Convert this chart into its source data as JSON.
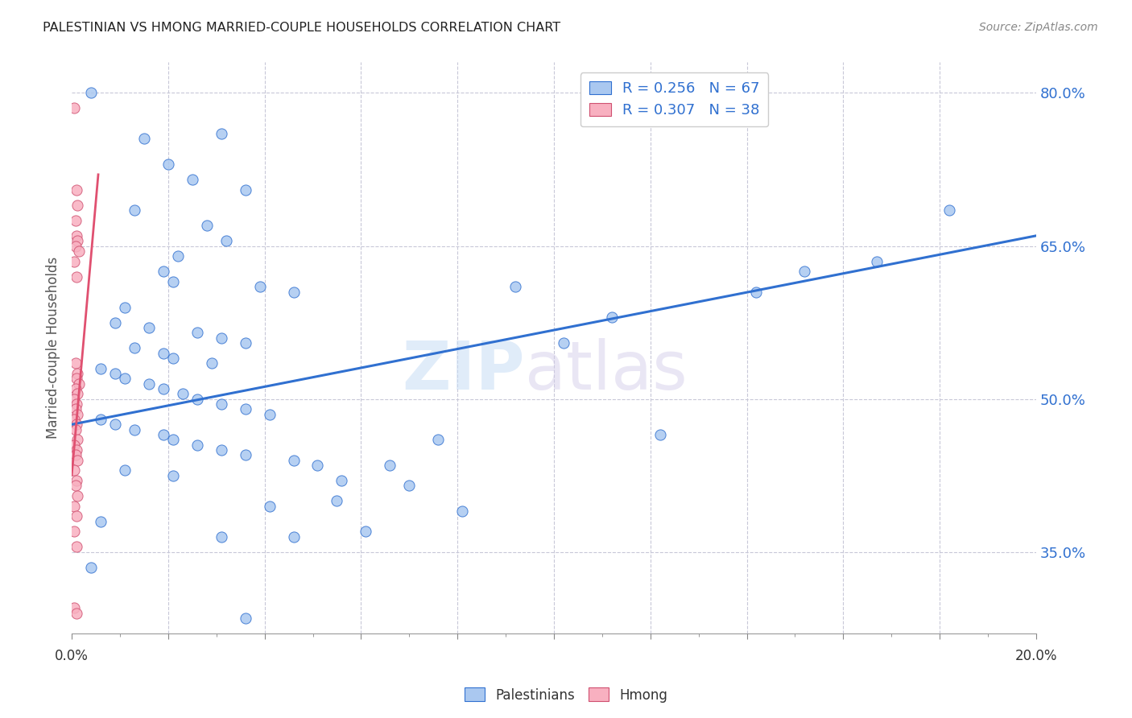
{
  "title": "PALESTINIAN VS HMONG MARRIED-COUPLE HOUSEHOLDS CORRELATION CHART",
  "source": "Source: ZipAtlas.com",
  "ylabel": "Married-couple Households",
  "right_yticks": [
    80.0,
    65.0,
    50.0,
    35.0
  ],
  "legend_blue_label": "R = 0.256   N = 67",
  "legend_pink_label": "R = 0.307   N = 38",
  "blue_color": "#aac8f0",
  "pink_color": "#f8b0c0",
  "trend_blue_color": "#3070d0",
  "trend_pink_color": "#e05070",
  "watermark_zip": "ZIP",
  "watermark_atlas": "atlas",
  "blue_scatter": [
    [
      0.4,
      80.0
    ],
    [
      1.5,
      75.5
    ],
    [
      3.1,
      76.0
    ],
    [
      2.0,
      73.0
    ],
    [
      2.5,
      71.5
    ],
    [
      3.6,
      70.5
    ],
    [
      1.3,
      68.5
    ],
    [
      2.8,
      67.0
    ],
    [
      3.2,
      65.5
    ],
    [
      2.2,
      64.0
    ],
    [
      1.9,
      62.5
    ],
    [
      2.1,
      61.5
    ],
    [
      3.9,
      61.0
    ],
    [
      4.6,
      60.5
    ],
    [
      1.1,
      59.0
    ],
    [
      0.9,
      57.5
    ],
    [
      1.6,
      57.0
    ],
    [
      2.6,
      56.5
    ],
    [
      3.1,
      56.0
    ],
    [
      3.6,
      55.5
    ],
    [
      1.3,
      55.0
    ],
    [
      1.9,
      54.5
    ],
    [
      2.1,
      54.0
    ],
    [
      2.9,
      53.5
    ],
    [
      0.6,
      53.0
    ],
    [
      0.9,
      52.5
    ],
    [
      1.1,
      52.0
    ],
    [
      1.6,
      51.5
    ],
    [
      1.9,
      51.0
    ],
    [
      2.3,
      50.5
    ],
    [
      2.6,
      50.0
    ],
    [
      3.1,
      49.5
    ],
    [
      3.6,
      49.0
    ],
    [
      4.1,
      48.5
    ],
    [
      0.6,
      48.0
    ],
    [
      0.9,
      47.5
    ],
    [
      1.3,
      47.0
    ],
    [
      1.9,
      46.5
    ],
    [
      2.1,
      46.0
    ],
    [
      2.6,
      45.5
    ],
    [
      3.1,
      45.0
    ],
    [
      3.6,
      44.5
    ],
    [
      4.6,
      44.0
    ],
    [
      5.1,
      43.5
    ],
    [
      1.1,
      43.0
    ],
    [
      2.1,
      42.5
    ],
    [
      5.6,
      42.0
    ],
    [
      4.1,
      39.5
    ],
    [
      0.6,
      38.0
    ],
    [
      3.1,
      36.5
    ],
    [
      9.2,
      61.0
    ],
    [
      14.2,
      60.5
    ],
    [
      18.2,
      68.5
    ],
    [
      11.2,
      58.0
    ],
    [
      15.2,
      62.5
    ],
    [
      0.4,
      33.5
    ],
    [
      3.6,
      28.5
    ],
    [
      6.1,
      37.0
    ],
    [
      8.1,
      39.0
    ],
    [
      10.2,
      55.5
    ],
    [
      12.2,
      46.5
    ],
    [
      16.7,
      63.5
    ],
    [
      4.6,
      36.5
    ],
    [
      7.6,
      46.0
    ],
    [
      6.6,
      43.5
    ],
    [
      5.5,
      40.0
    ],
    [
      7.0,
      41.5
    ]
  ],
  "pink_scatter": [
    [
      0.05,
      78.5
    ],
    [
      0.1,
      70.5
    ],
    [
      0.12,
      69.0
    ],
    [
      0.08,
      67.5
    ],
    [
      0.1,
      66.0
    ],
    [
      0.12,
      65.5
    ],
    [
      0.08,
      65.0
    ],
    [
      0.15,
      64.5
    ],
    [
      0.05,
      63.5
    ],
    [
      0.1,
      62.0
    ],
    [
      0.08,
      53.5
    ],
    [
      0.12,
      52.5
    ],
    [
      0.1,
      52.0
    ],
    [
      0.15,
      51.5
    ],
    [
      0.08,
      51.0
    ],
    [
      0.12,
      50.5
    ],
    [
      0.05,
      50.0
    ],
    [
      0.1,
      49.5
    ],
    [
      0.08,
      49.0
    ],
    [
      0.12,
      48.5
    ],
    [
      0.05,
      48.0
    ],
    [
      0.1,
      47.5
    ],
    [
      0.08,
      47.0
    ],
    [
      0.12,
      46.0
    ],
    [
      0.05,
      45.5
    ],
    [
      0.1,
      45.0
    ],
    [
      0.08,
      44.5
    ],
    [
      0.12,
      44.0
    ],
    [
      0.05,
      43.0
    ],
    [
      0.1,
      42.0
    ],
    [
      0.08,
      41.5
    ],
    [
      0.12,
      40.5
    ],
    [
      0.05,
      39.5
    ],
    [
      0.1,
      38.5
    ],
    [
      0.05,
      37.0
    ],
    [
      0.1,
      35.5
    ],
    [
      0.05,
      29.5
    ],
    [
      0.1,
      29.0
    ]
  ],
  "xlim": [
    0.0,
    20.0
  ],
  "ylim": [
    27.0,
    83.0
  ],
  "blue_trend_x": [
    0.0,
    20.0
  ],
  "blue_trend_y": [
    47.5,
    66.0
  ],
  "pink_trend_x": [
    0.0,
    0.55
  ],
  "pink_trend_y": [
    42.5,
    72.0
  ]
}
